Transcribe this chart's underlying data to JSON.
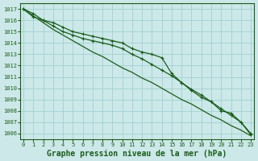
{
  "title": "Graphe pression niveau de la mer (hPa)",
  "xlabel_fontsize": 7,
  "ylabel_ticks": [
    1006,
    1007,
    1008,
    1009,
    1010,
    1011,
    1012,
    1013,
    1014,
    1015,
    1016,
    1017
  ],
  "xlim": [
    -0.3,
    23.3
  ],
  "ylim": [
    1005.5,
    1017.5
  ],
  "background_color": "#cce8e8",
  "grid_color": "#99cccc",
  "line_color": "#1a5c1a",
  "series": [
    {
      "y": [
        1017.0,
        1016.6,
        1016.0,
        1015.8,
        1015.4,
        1015.0,
        1014.8,
        1014.6,
        1014.4,
        1014.2,
        1014.0,
        1013.5,
        1013.2,
        1013.0,
        1012.7,
        1011.3,
        1010.5,
        1009.8,
        1009.2,
        1008.8,
        1008.0,
        1007.8,
        1007.0,
        1005.9
      ],
      "marker": true,
      "linewidth": 0.9
    },
    {
      "y": [
        1017.0,
        1016.3,
        1016.0,
        1015.5,
        1015.0,
        1014.7,
        1014.4,
        1014.2,
        1014.0,
        1013.8,
        1013.5,
        1013.0,
        1012.6,
        1012.1,
        1011.6,
        1011.1,
        1010.5,
        1009.9,
        1009.4,
        1008.8,
        1008.2,
        1007.6,
        1007.0,
        1006.0
      ],
      "marker": true,
      "linewidth": 0.9
    },
    {
      "y": [
        1017.0,
        1016.4,
        1015.8,
        1015.2,
        1014.7,
        1014.2,
        1013.7,
        1013.2,
        1012.8,
        1012.3,
        1011.8,
        1011.4,
        1010.9,
        1010.5,
        1010.0,
        1009.5,
        1009.0,
        1008.6,
        1008.1,
        1007.6,
        1007.2,
        1006.7,
        1006.3,
        1005.8
      ],
      "marker": false,
      "linewidth": 0.9
    }
  ]
}
